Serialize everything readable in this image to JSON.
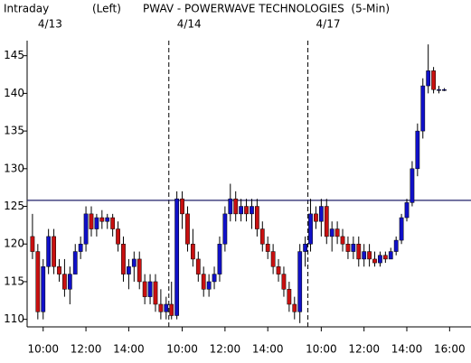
{
  "chart_data": {
    "type": "candlestick",
    "title": "PWAV - POWERWAVE TECHNOLOGIES  (5-Min)",
    "mode_label": "Intraday",
    "axis_label": "(Left)",
    "days": [
      "4/13",
      "4/14",
      "4/17"
    ],
    "day_starts": [
      0,
      26,
      52
    ],
    "day_separators": [
      25.5,
      51.5
    ],
    "reference_line": 125.8,
    "up_color": "#1010c8",
    "down_color": "#c81010",
    "xlim": [
      -1,
      82
    ],
    "ylim": [
      109,
      147
    ],
    "yticks": [
      110,
      115,
      120,
      125,
      130,
      135,
      140,
      145
    ],
    "xticks": [
      {
        "value": 2,
        "label": "10:00"
      },
      {
        "value": 10,
        "label": "12:00"
      },
      {
        "value": 18,
        "label": "14:00"
      },
      {
        "value": 28,
        "label": "10:00"
      },
      {
        "value": 36,
        "label": "12:00"
      },
      {
        "value": 44,
        "label": "14:00"
      },
      {
        "value": 54,
        "label": "10:00"
      },
      {
        "value": 62,
        "label": "12:00"
      },
      {
        "value": 70,
        "label": "14:00"
      },
      {
        "value": 78,
        "label": "16:00"
      }
    ],
    "x": [
      0,
      1,
      2,
      3,
      4,
      5,
      6,
      7,
      8,
      9,
      10,
      11,
      12,
      13,
      14,
      15,
      16,
      17,
      18,
      19,
      20,
      21,
      22,
      23,
      24,
      25,
      26,
      27,
      28,
      29,
      30,
      31,
      32,
      33,
      34,
      35,
      36,
      37,
      38,
      39,
      40,
      41,
      42,
      43,
      44,
      45,
      46,
      47,
      48,
      49,
      50,
      51,
      52,
      53,
      54,
      55,
      56,
      57,
      58,
      59,
      60,
      61,
      62,
      63,
      64,
      65,
      66,
      67,
      68,
      69,
      70,
      71,
      72,
      73,
      74,
      75,
      76,
      77
    ],
    "series": {
      "open": [
        121,
        119,
        111,
        117,
        121,
        117,
        116,
        114,
        116,
        119,
        120,
        124,
        122,
        123.5,
        123,
        123.5,
        122,
        120,
        116,
        117,
        118,
        115,
        113,
        115,
        112,
        111,
        112,
        110.5,
        126,
        124,
        120,
        118,
        116,
        114,
        115,
        116,
        120,
        124,
        126,
        124,
        125,
        124,
        125,
        122,
        120,
        119,
        117,
        116,
        114,
        112,
        111,
        119,
        120,
        124,
        123,
        125,
        121,
        122,
        121,
        120,
        119,
        120,
        118,
        119,
        118,
        117.5,
        118.5,
        118,
        119,
        120.5,
        123.5,
        125.5,
        130,
        135,
        141,
        143,
        140.5,
        140.5
      ],
      "high": [
        124,
        120,
        118,
        122,
        122,
        118,
        118,
        117,
        120,
        121,
        125,
        125,
        124,
        124.5,
        124,
        124,
        123,
        121,
        118,
        119,
        119,
        116,
        116,
        116,
        114,
        113,
        115,
        127,
        127,
        125,
        122,
        119,
        117,
        116,
        117,
        121,
        125,
        128,
        127,
        126,
        126,
        126,
        126,
        123,
        121,
        120,
        118,
        117,
        115,
        113,
        120,
        121,
        126,
        125,
        126,
        126,
        123,
        123,
        122,
        121,
        121,
        121,
        120,
        120,
        119,
        119,
        119,
        119.5,
        121,
        124,
        126,
        131,
        136,
        142,
        146.5,
        143.5,
        141,
        140.7
      ],
      "low": [
        118,
        110,
        110,
        116,
        116,
        115,
        113,
        112,
        116,
        118,
        119,
        121,
        121,
        122,
        122,
        121,
        119,
        115,
        114,
        115,
        114,
        112,
        112,
        111,
        110,
        110,
        110,
        110,
        122,
        119,
        117,
        115,
        113,
        113,
        114,
        115,
        119,
        123,
        123,
        123,
        123,
        122,
        121,
        119,
        118,
        116,
        115,
        113,
        111,
        110,
        109.5,
        117,
        119,
        122,
        121,
        120,
        119,
        120,
        119,
        118,
        118,
        117,
        117,
        117,
        117,
        117,
        117.5,
        118,
        118.5,
        120,
        123,
        125,
        129,
        134,
        140,
        140,
        140,
        140.3
      ],
      "close": [
        119,
        111,
        117,
        121,
        117,
        116,
        114,
        116,
        119,
        120,
        124,
        122,
        123.5,
        123,
        123.5,
        122,
        120,
        116,
        117,
        118,
        115,
        113,
        115,
        112,
        111,
        112,
        110.5,
        126,
        124,
        120,
        118,
        116,
        114,
        115,
        116,
        120,
        124,
        126,
        124,
        125,
        124,
        125,
        122,
        120,
        119,
        117,
        116,
        114,
        112,
        111,
        119,
        120,
        124,
        123,
        125,
        121,
        122,
        121,
        120,
        119,
        120,
        118,
        119,
        118,
        117.5,
        118.5,
        118,
        119,
        120.5,
        123.5,
        125.5,
        130,
        135,
        141,
        143,
        140.5,
        140.5,
        140.5
      ]
    }
  }
}
